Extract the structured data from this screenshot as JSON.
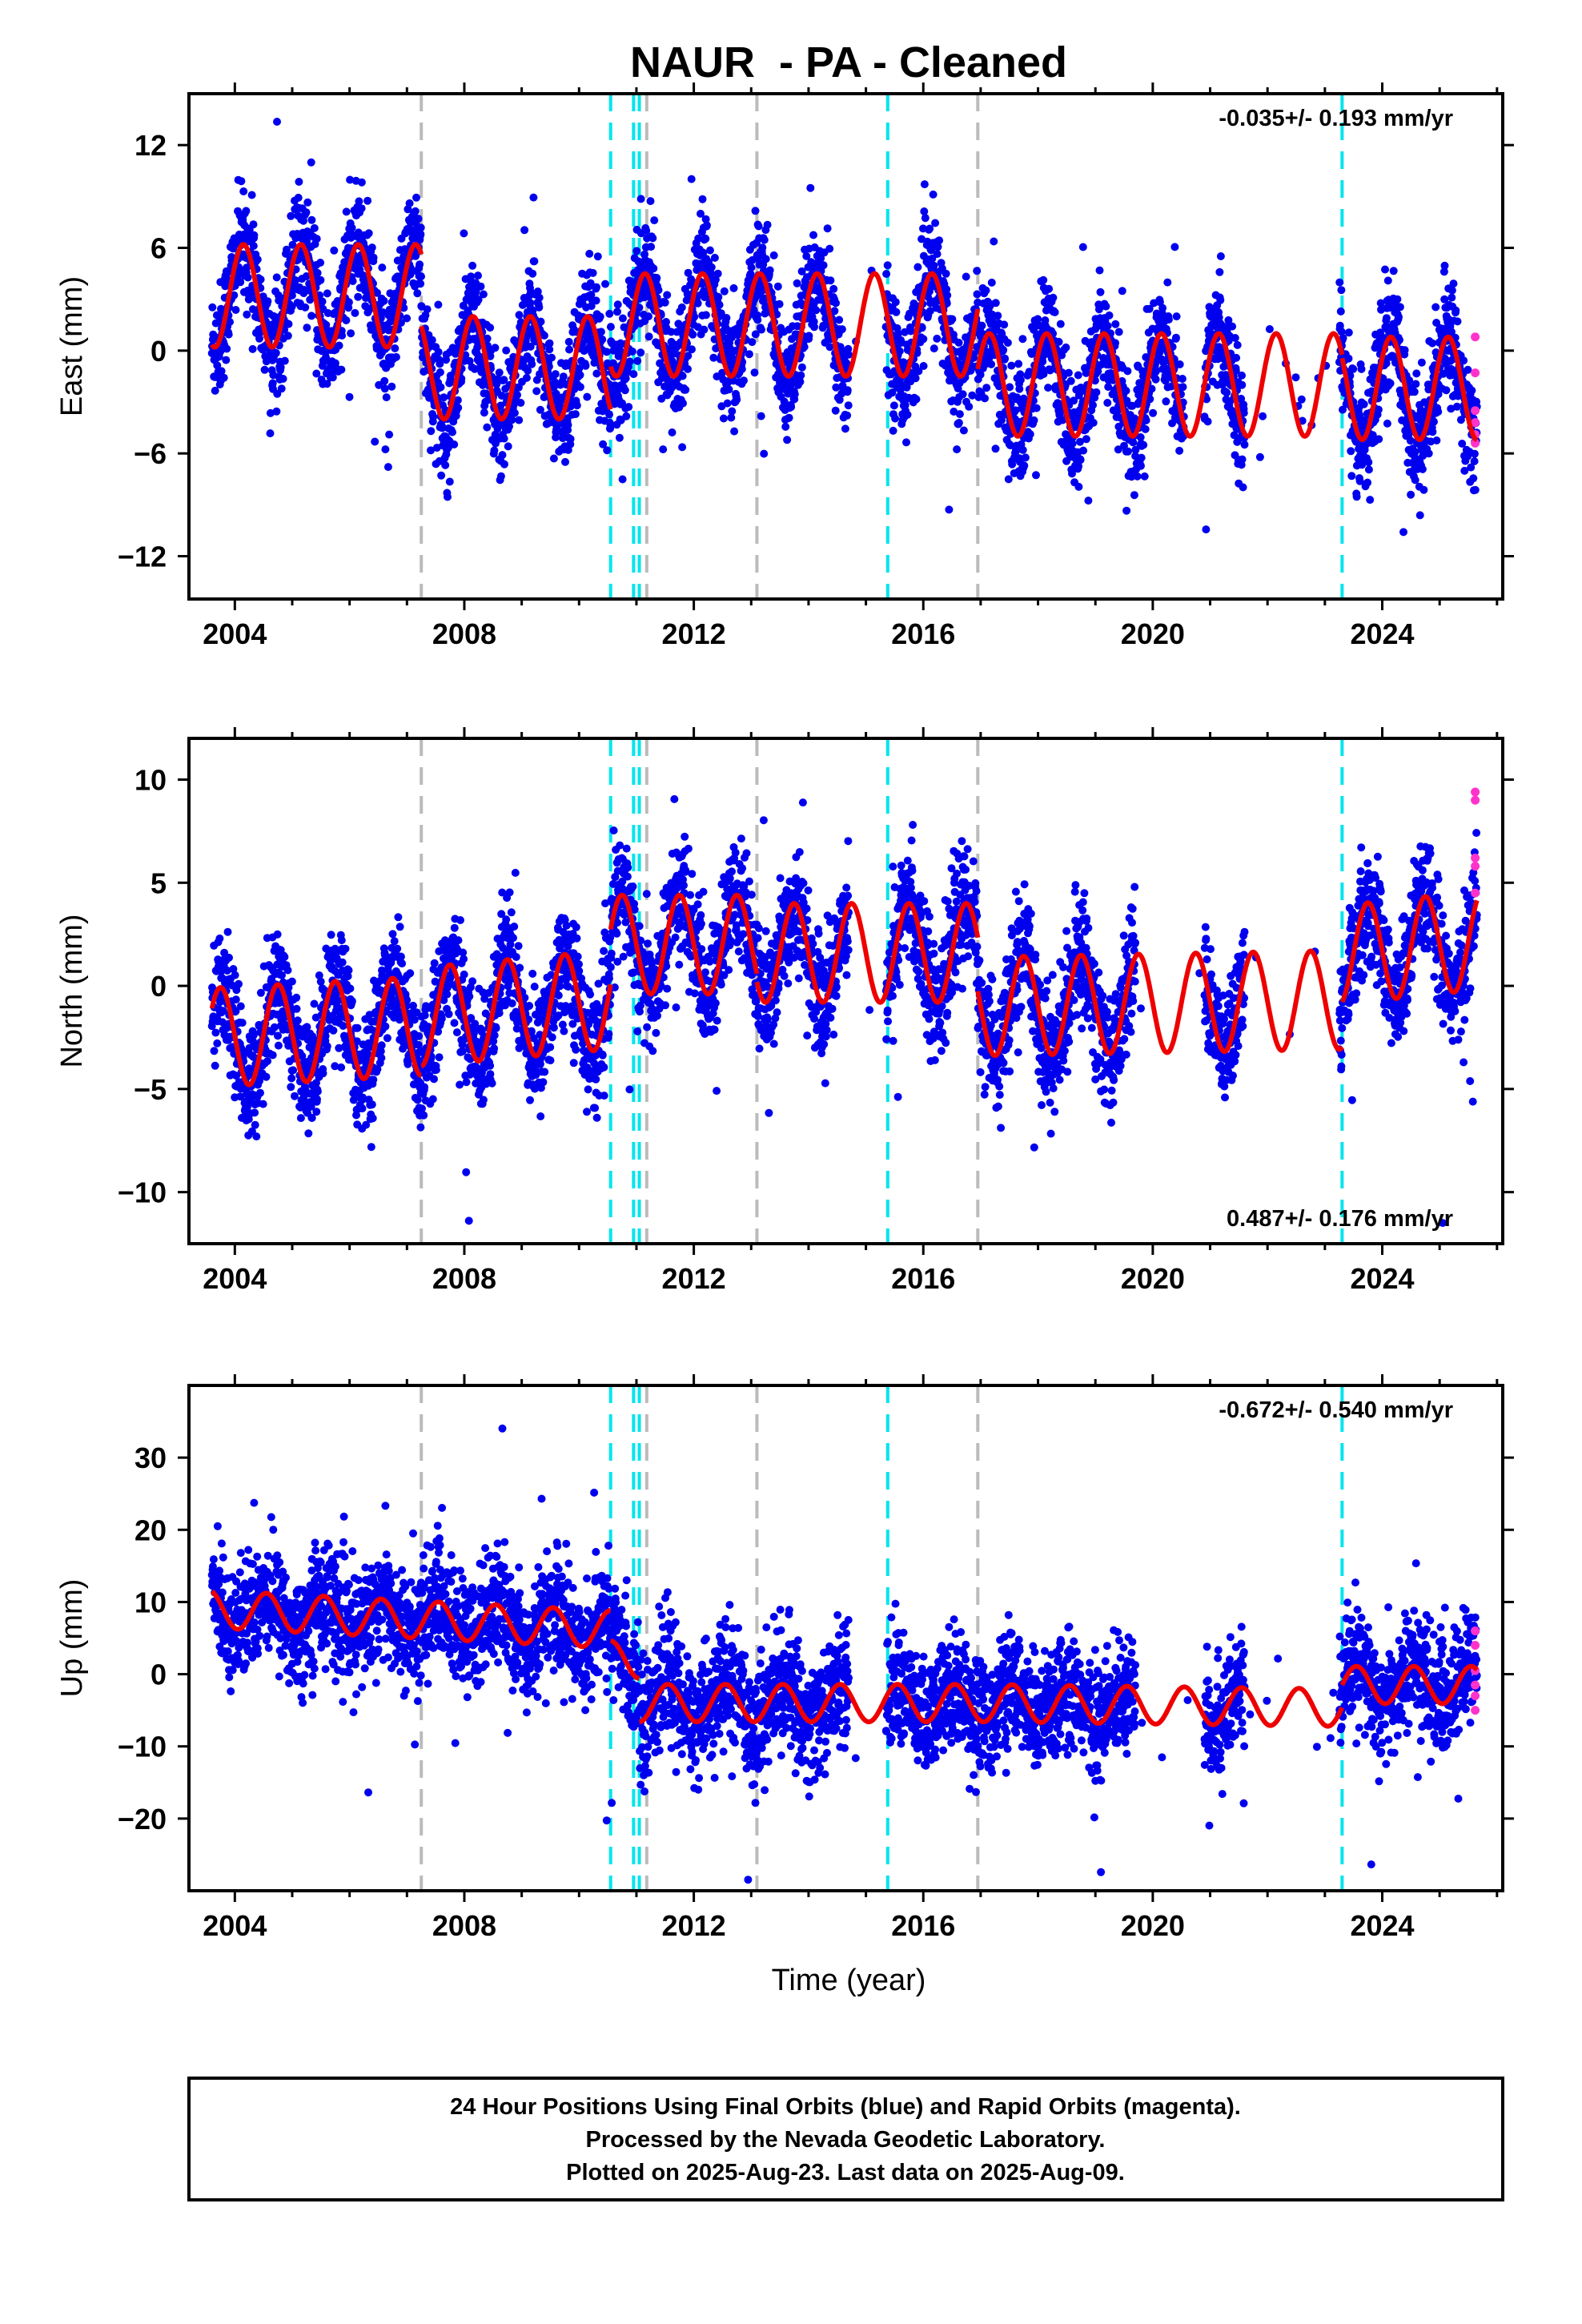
{
  "chart_data": {
    "type": "scatter",
    "title": "NAUR  - PA - Cleaned",
    "xlabel": "Time (year)",
    "xlim": [
      2003.2,
      2026.1
    ],
    "x_ticks": [
      2004,
      2008,
      2012,
      2016,
      2020,
      2024
    ],
    "colors": {
      "final": "#0000ee",
      "rapid": "#ff33cc",
      "model": "#ee0000",
      "antenna_change": "#bbbbbb",
      "earthquake": "#00e5ee"
    },
    "gray_lines": [
      2007.25,
      2013.1,
      2016.95
    ],
    "cyan_lines": [
      2010.55,
      2010.95,
      2011.05,
      2015.38,
      2023.3
    ],
    "extra_gray_lines": [
      2011.18
    ],
    "panels": [
      {
        "name": "east",
        "ylabel": "East (mm)",
        "ylim": [
          -14.5,
          15
        ],
        "y_ticks": [
          -12,
          -6,
          0,
          6,
          12
        ],
        "rate": "-0.035+/- 0.193 mm/yr",
        "rate_position": "top-right",
        "model_segments": [
          {
            "start": 2003.6,
            "end": 2007.25,
            "offset": 3.2,
            "trend": 0,
            "amp": 3.0,
            "phase": 0.9
          },
          {
            "start": 2007.25,
            "end": 2010.55,
            "offset": -1.0,
            "trend": 0,
            "amp": 3.0,
            "phase": 0.9
          },
          {
            "start": 2010.55,
            "end": 2013.1,
            "offset": 1.5,
            "trend": 0,
            "amp": 3.0,
            "phase": 0.9
          },
          {
            "start": 2013.1,
            "end": 2016.95,
            "offset": 1.5,
            "trend": 0,
            "amp": 3.0,
            "phase": 0.9
          },
          {
            "start": 2016.95,
            "end": 2023.3,
            "offset": -2.0,
            "trend": 0,
            "amp": 3.0,
            "phase": 0.9
          },
          {
            "start": 2023.3,
            "end": 2025.65,
            "offset": -2.2,
            "trend": 0,
            "amp": 3.0,
            "phase": 0.9
          }
        ],
        "scatter_spread": 1.6,
        "gaps": [
          [
            2014.7,
            2015.35
          ],
          [
            2020.55,
            2020.9
          ],
          [
            2021.6,
            2023.25
          ]
        ],
        "rapid_points": [
          [
            2025.62,
            0.8
          ],
          [
            2025.62,
            -1.3
          ],
          [
            2025.62,
            -3.5
          ],
          [
            2025.62,
            -4.2
          ],
          [
            2025.62,
            -4.9
          ],
          [
            2025.62,
            -5.4
          ]
        ]
      },
      {
        "name": "north",
        "ylabel": "North (mm)",
        "ylim": [
          -12.5,
          12
        ],
        "y_ticks": [
          -10,
          -5,
          0,
          5,
          10
        ],
        "rate": "0.487+/- 0.176 mm/yr",
        "rate_position": "bottom-right",
        "model_segments": [
          {
            "start": 2003.6,
            "end": 2007.25,
            "offset": -2.5,
            "trend": 0.15,
            "amp": 2.4,
            "phase": 0.5
          },
          {
            "start": 2007.25,
            "end": 2010.55,
            "offset": -1.5,
            "trend": 0.25,
            "amp": 2.4,
            "phase": 0.5
          },
          {
            "start": 2010.55,
            "end": 2013.1,
            "offset": 2.0,
            "trend": 0,
            "amp": 2.4,
            "phase": 0.5
          },
          {
            "start": 2013.1,
            "end": 2016.95,
            "offset": 1.6,
            "trend": 0,
            "amp": 2.4,
            "phase": 0.5
          },
          {
            "start": 2016.95,
            "end": 2023.3,
            "offset": -1.0,
            "trend": 0.05,
            "amp": 2.4,
            "phase": 0.5
          },
          {
            "start": 2023.3,
            "end": 2025.65,
            "offset": 1.5,
            "trend": 0.3,
            "amp": 2.4,
            "phase": 0.5
          }
        ],
        "scatter_spread": 1.4,
        "gaps": [
          [
            2014.7,
            2015.35
          ],
          [
            2019.7,
            2020.9
          ],
          [
            2021.6,
            2023.25
          ]
        ],
        "rapid_points": [
          [
            2025.62,
            9.4
          ],
          [
            2025.62,
            9.0
          ],
          [
            2025.62,
            6.2
          ],
          [
            2025.62,
            5.8
          ],
          [
            2025.62,
            4.5
          ]
        ]
      },
      {
        "name": "up",
        "ylabel": "Up (mm)",
        "ylim": [
          -30,
          40
        ],
        "y_ticks": [
          -20,
          -10,
          0,
          10,
          20,
          30
        ],
        "rate": "-0.672+/- 0.540 mm/yr",
        "rate_position": "top-right",
        "model_segments": [
          {
            "start": 2003.6,
            "end": 2010.55,
            "offset": 9.0,
            "trend": -0.4,
            "amp": 2.6,
            "phase": 0.3
          },
          {
            "start": 2010.55,
            "end": 2011.05,
            "offset": 2.0,
            "trend": 0,
            "amp": 2.6,
            "phase": 0.3
          },
          {
            "start": 2011.05,
            "end": 2016.95,
            "offset": -4.0,
            "trend": 0,
            "amp": 2.6,
            "phase": 0.3
          },
          {
            "start": 2016.95,
            "end": 2023.3,
            "offset": -4.0,
            "trend": -0.1,
            "amp": 2.6,
            "phase": 0.3
          },
          {
            "start": 2023.3,
            "end": 2025.65,
            "offset": -1.5,
            "trend": 0,
            "amp": 2.6,
            "phase": 0.3
          }
        ],
        "scatter_spread": 4.0,
        "gaps": [
          [
            2014.7,
            2015.35
          ],
          [
            2019.7,
            2020.9
          ],
          [
            2021.6,
            2023.25
          ]
        ],
        "rapid_points": [
          [
            2025.62,
            6.0
          ],
          [
            2025.62,
            4.0
          ],
          [
            2025.62,
            0.5
          ],
          [
            2025.62,
            -1.5
          ],
          [
            2025.62,
            -3.0
          ],
          [
            2025.62,
            -5.0
          ]
        ]
      }
    ]
  },
  "footer": {
    "line1": "24 Hour Positions Using Final Orbits (blue) and Rapid Orbits (magenta).",
    "line2": "Processed by the Nevada Geodetic Laboratory.",
    "line3": "Plotted on 2025-Aug-23. Last data on 2025-Aug-09."
  }
}
